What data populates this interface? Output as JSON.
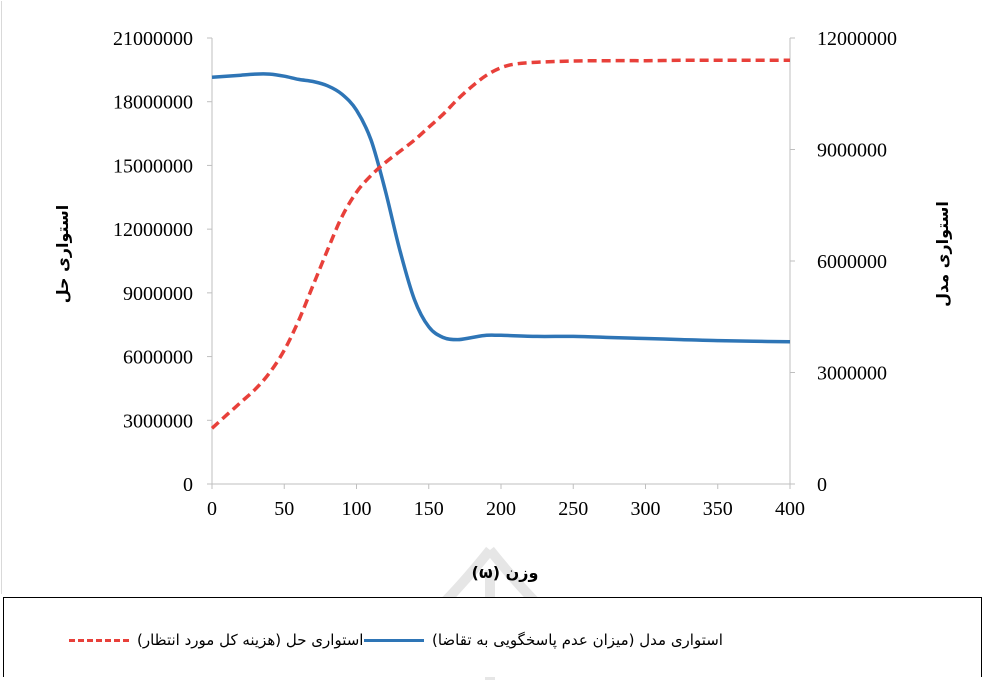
{
  "chart_data": {
    "type": "line",
    "title": "",
    "xlabel": "وزن (ω)",
    "ylabel_left": "استواری حل",
    "ylabel_right": "استواری مدل",
    "xlim": [
      0,
      400
    ],
    "ylim_left": [
      0,
      21000000
    ],
    "ylim_right": [
      0,
      12000000
    ],
    "x_ticks": [
      "0",
      "50",
      "100",
      "150",
      "200",
      "250",
      "300",
      "350",
      "400"
    ],
    "y_ticks_left": [
      "0",
      "3000000",
      "6000000",
      "9000000",
      "12000000",
      "15000000",
      "18000000",
      "21000000"
    ],
    "y_ticks_right": [
      "0",
      "3000000",
      "6000000",
      "9000000",
      "12000000"
    ],
    "grid": false,
    "legend_position": "bottom",
    "series": [
      {
        "name": "استواری مدل (میزان عدم پاسخگویی به تقاضا)",
        "axis": "left",
        "style": "solid",
        "color": "#2e75b6",
        "x": [
          0,
          10,
          20,
          30,
          40,
          50,
          60,
          70,
          80,
          90,
          100,
          110,
          120,
          130,
          140,
          150,
          160,
          170,
          180,
          190,
          200,
          225,
          250,
          275,
          300,
          325,
          350,
          375,
          400
        ],
        "y": [
          19150000,
          19200000,
          19250000,
          19300000,
          19300000,
          19200000,
          19050000,
          18950000,
          18750000,
          18350000,
          17600000,
          16200000,
          13800000,
          11000000,
          8700000,
          7400000,
          6900000,
          6800000,
          6900000,
          7000000,
          7000000,
          6950000,
          6950000,
          6900000,
          6850000,
          6800000,
          6750000,
          6720000,
          6700000
        ]
      },
      {
        "name": "استواری حل (هزینه کل مورد انتظار)",
        "axis": "right",
        "style": "dashed",
        "color": "#e8403a",
        "x": [
          0,
          10,
          20,
          30,
          40,
          50,
          60,
          70,
          80,
          90,
          100,
          110,
          120,
          130,
          140,
          150,
          160,
          170,
          180,
          190,
          200,
          210,
          225,
          250,
          275,
          300,
          325,
          350,
          375,
          400
        ],
        "y": [
          1500000,
          1850000,
          2200000,
          2550000,
          3000000,
          3600000,
          4400000,
          5350000,
          6300000,
          7200000,
          7850000,
          8300000,
          8650000,
          8950000,
          9250000,
          9600000,
          9950000,
          10350000,
          10700000,
          11000000,
          11200000,
          11300000,
          11350000,
          11380000,
          11390000,
          11390000,
          11400000,
          11400000,
          11400000,
          11400000
        ]
      }
    ]
  }
}
